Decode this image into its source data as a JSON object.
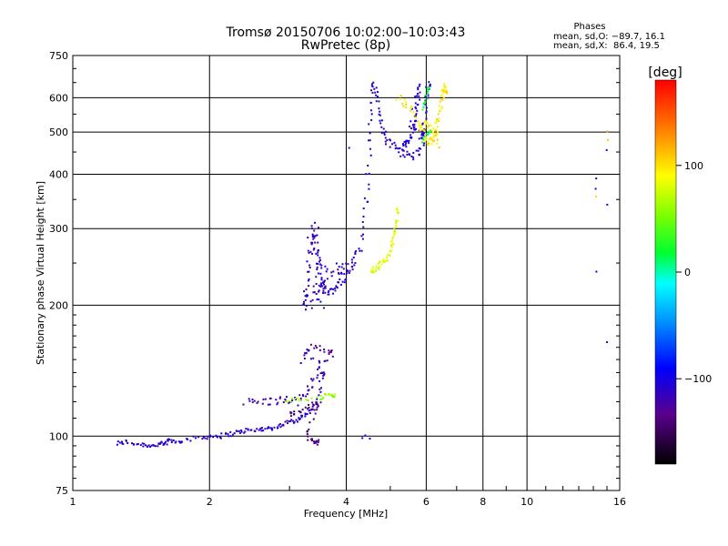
{
  "chart_data": {
    "type": "scatter",
    "title": "Tromsø 20150706 10:02:00–10:03:43",
    "subtitle": "RwPretec (8p)",
    "xlabel": "Frequency [MHz]",
    "ylabel": "Stationary phase Virtual Height [km]",
    "x_scale": "log",
    "y_scale": "log",
    "xlim": [
      1,
      16
    ],
    "ylim": [
      75,
      750
    ],
    "x_ticks": [
      1,
      2,
      4,
      6,
      8,
      10,
      16
    ],
    "x_tick_labels": [
      "1",
      "2",
      "4",
      "6",
      "8",
      "10",
      "16"
    ],
    "y_ticks": [
      75,
      100,
      200,
      300,
      400,
      500,
      600,
      750
    ],
    "y_tick_labels": [
      "75",
      "100",
      "200",
      "300",
      "400",
      "500",
      "600",
      "750"
    ],
    "grid": true,
    "phase_box": {
      "title": "Phases",
      "line_o": "mean, sd,O: −89.7, 16.1",
      "line_x": "mean, sd,X:  86.4, 19.5"
    },
    "colorbar": {
      "label": "[deg]",
      "range": [
        -180,
        180
      ],
      "ticks": [
        100,
        0,
        -100
      ],
      "tick_labels": [
        "100",
        "0",
        "−100"
      ]
    },
    "series": [
      {
        "id": "e-layer-low",
        "phase": -110,
        "jitter": [
          0.01,
          0.012
        ],
        "points": [
          [
            1.25,
            96
          ],
          [
            1.3,
            97
          ],
          [
            1.38,
            96
          ],
          [
            1.45,
            95.5
          ],
          [
            1.5,
            95
          ],
          [
            1.55,
            96
          ],
          [
            1.6,
            95.5
          ],
          [
            1.62,
            98
          ],
          [
            1.7,
            97
          ],
          [
            1.75,
            98
          ],
          [
            1.9,
            99
          ],
          [
            2.0,
            100
          ],
          [
            2.1,
            100
          ],
          [
            2.2,
            101
          ],
          [
            2.3,
            102
          ],
          [
            2.4,
            103
          ],
          [
            2.5,
            103
          ],
          [
            2.6,
            104
          ],
          [
            2.7,
            104
          ],
          [
            2.8,
            105
          ],
          [
            2.9,
            106
          ],
          [
            3.0,
            108
          ],
          [
            3.1,
            109
          ],
          [
            3.2,
            111
          ],
          [
            3.3,
            113
          ],
          [
            3.4,
            116
          ],
          [
            3.5,
            125
          ],
          [
            3.55,
            140
          ]
        ]
      },
      {
        "id": "e-layer-mid",
        "phase": -120,
        "jitter": [
          0.012,
          0.02
        ],
        "points": [
          [
            2.4,
            120
          ],
          [
            2.55,
            120
          ],
          [
            2.7,
            120
          ],
          [
            2.85,
            121
          ],
          [
            3.0,
            121
          ],
          [
            3.1,
            120
          ],
          [
            3.25,
            124
          ],
          [
            3.35,
            132
          ],
          [
            3.45,
            142
          ],
          [
            3.6,
            150
          ],
          [
            3.2,
            150
          ],
          [
            3.3,
            160
          ],
          [
            3.5,
            160
          ],
          [
            3.7,
            155
          ]
        ]
      },
      {
        "id": "es-minor",
        "phase": 60,
        "jitter": [
          0.008,
          0.01
        ],
        "points": [
          [
            2.95,
            120
          ],
          [
            3.15,
            122
          ],
          [
            3.5,
            122
          ],
          [
            3.65,
            125
          ],
          [
            3.75,
            124
          ]
        ]
      },
      {
        "id": "e-purple",
        "phase": -140,
        "jitter": [
          0.01,
          0.015
        ],
        "points": [
          [
            3.0,
            112
          ],
          [
            3.1,
            113
          ],
          [
            3.3,
            116
          ],
          [
            3.4,
            118
          ],
          [
            3.5,
            118
          ],
          [
            3.25,
            102
          ],
          [
            3.35,
            98
          ],
          [
            3.45,
            97
          ]
        ]
      },
      {
        "id": "f1-o-trace",
        "phase": -110,
        "jitter": [
          0.012,
          0.02
        ],
        "points": [
          [
            3.25,
            195
          ],
          [
            3.25,
            210
          ],
          [
            3.28,
            230
          ],
          [
            3.32,
            260
          ],
          [
            3.38,
            280
          ],
          [
            3.45,
            260
          ],
          [
            3.5,
            240
          ],
          [
            3.55,
            225
          ],
          [
            3.6,
            218
          ],
          [
            3.7,
            215
          ],
          [
            3.8,
            220
          ],
          [
            3.9,
            228
          ],
          [
            4.0,
            235
          ],
          [
            4.1,
            245
          ],
          [
            4.2,
            255
          ],
          [
            4.3,
            275
          ],
          [
            4.4,
            320
          ],
          [
            4.45,
            380
          ],
          [
            4.5,
            470
          ],
          [
            4.55,
            570
          ],
          [
            4.6,
            640
          ],
          [
            4.65,
            620
          ],
          [
            4.7,
            560
          ],
          [
            4.8,
            510
          ],
          [
            4.9,
            480
          ],
          [
            5.0,
            470
          ],
          [
            5.2,
            455
          ],
          [
            5.4,
            445
          ],
          [
            5.6,
            440
          ],
          [
            5.8,
            450
          ],
          [
            5.9,
            480
          ],
          [
            5.95,
            520
          ],
          [
            6.0,
            580
          ],
          [
            6.05,
            640
          ]
        ]
      },
      {
        "id": "f1-o-cloud",
        "phase": -115,
        "jitter": [
          0.025,
          0.04
        ],
        "points": [
          [
            3.3,
            200
          ],
          [
            3.4,
            210
          ],
          [
            3.5,
            220
          ],
          [
            3.6,
            205
          ],
          [
            3.45,
            235
          ],
          [
            3.55,
            250
          ],
          [
            3.3,
            290
          ],
          [
            3.4,
            300
          ],
          [
            3.7,
            230
          ],
          [
            3.85,
            245
          ],
          [
            3.95,
            240
          ]
        ]
      },
      {
        "id": "f2-o-branch",
        "phase": -105,
        "jitter": [
          0.01,
          0.02
        ],
        "points": [
          [
            5.3,
            460
          ],
          [
            5.4,
            470
          ],
          [
            5.5,
            480
          ],
          [
            5.6,
            500
          ],
          [
            5.65,
            530
          ],
          [
            5.7,
            560
          ],
          [
            5.75,
            600
          ],
          [
            5.8,
            640
          ],
          [
            5.55,
            520
          ],
          [
            5.85,
            490
          ],
          [
            5.9,
            500
          ]
        ]
      },
      {
        "id": "x-trace-lower",
        "phase": 80,
        "jitter": [
          0.008,
          0.015
        ],
        "points": [
          [
            4.55,
            240
          ],
          [
            4.6,
            242
          ],
          [
            4.7,
            245
          ],
          [
            4.8,
            250
          ],
          [
            4.9,
            255
          ],
          [
            5.0,
            265
          ],
          [
            5.05,
            275
          ],
          [
            5.1,
            290
          ],
          [
            5.15,
            305
          ],
          [
            5.2,
            330
          ]
        ]
      },
      {
        "id": "x-trace-upper",
        "phase": 95,
        "jitter": [
          0.01,
          0.02
        ],
        "points": [
          [
            5.2,
            600
          ],
          [
            5.4,
            580
          ],
          [
            5.6,
            560
          ],
          [
            5.8,
            520
          ],
          [
            5.9,
            500
          ],
          [
            6.0,
            480
          ],
          [
            6.1,
            475
          ],
          [
            6.2,
            480
          ],
          [
            6.3,
            500
          ],
          [
            6.4,
            530
          ],
          [
            6.45,
            560
          ],
          [
            6.5,
            600
          ],
          [
            6.55,
            640
          ],
          [
            6.6,
            620
          ],
          [
            6.4,
            470
          ],
          [
            6.2,
            500
          ],
          [
            6.0,
            520
          ]
        ]
      },
      {
        "id": "x-trace-edge",
        "phase": 20,
        "jitter": [
          0.006,
          0.01
        ],
        "points": [
          [
            5.9,
            560
          ],
          [
            6.0,
            600
          ],
          [
            6.05,
            630
          ],
          [
            5.85,
            470
          ],
          [
            6.1,
            500
          ]
        ]
      },
      {
        "id": "isolated",
        "phase": -100,
        "jitter": [
          0.003,
          0.004
        ],
        "points": [
          [
            4.05,
            460
          ],
          [
            4.4,
            100
          ],
          [
            4.5,
            99
          ],
          [
            4.35,
            99
          ],
          [
            14.2,
            390
          ],
          [
            14.2,
            238
          ],
          [
            14.2,
            370
          ],
          [
            15.0,
            165
          ],
          [
            15.0,
            340
          ],
          [
            15.0,
            455
          ]
        ]
      },
      {
        "id": "isolated-x",
        "phase": 110,
        "jitter": [
          0.003,
          0.004
        ],
        "points": [
          [
            14.2,
            355
          ],
          [
            15.05,
            500
          ],
          [
            15.05,
            480
          ]
        ]
      }
    ]
  }
}
